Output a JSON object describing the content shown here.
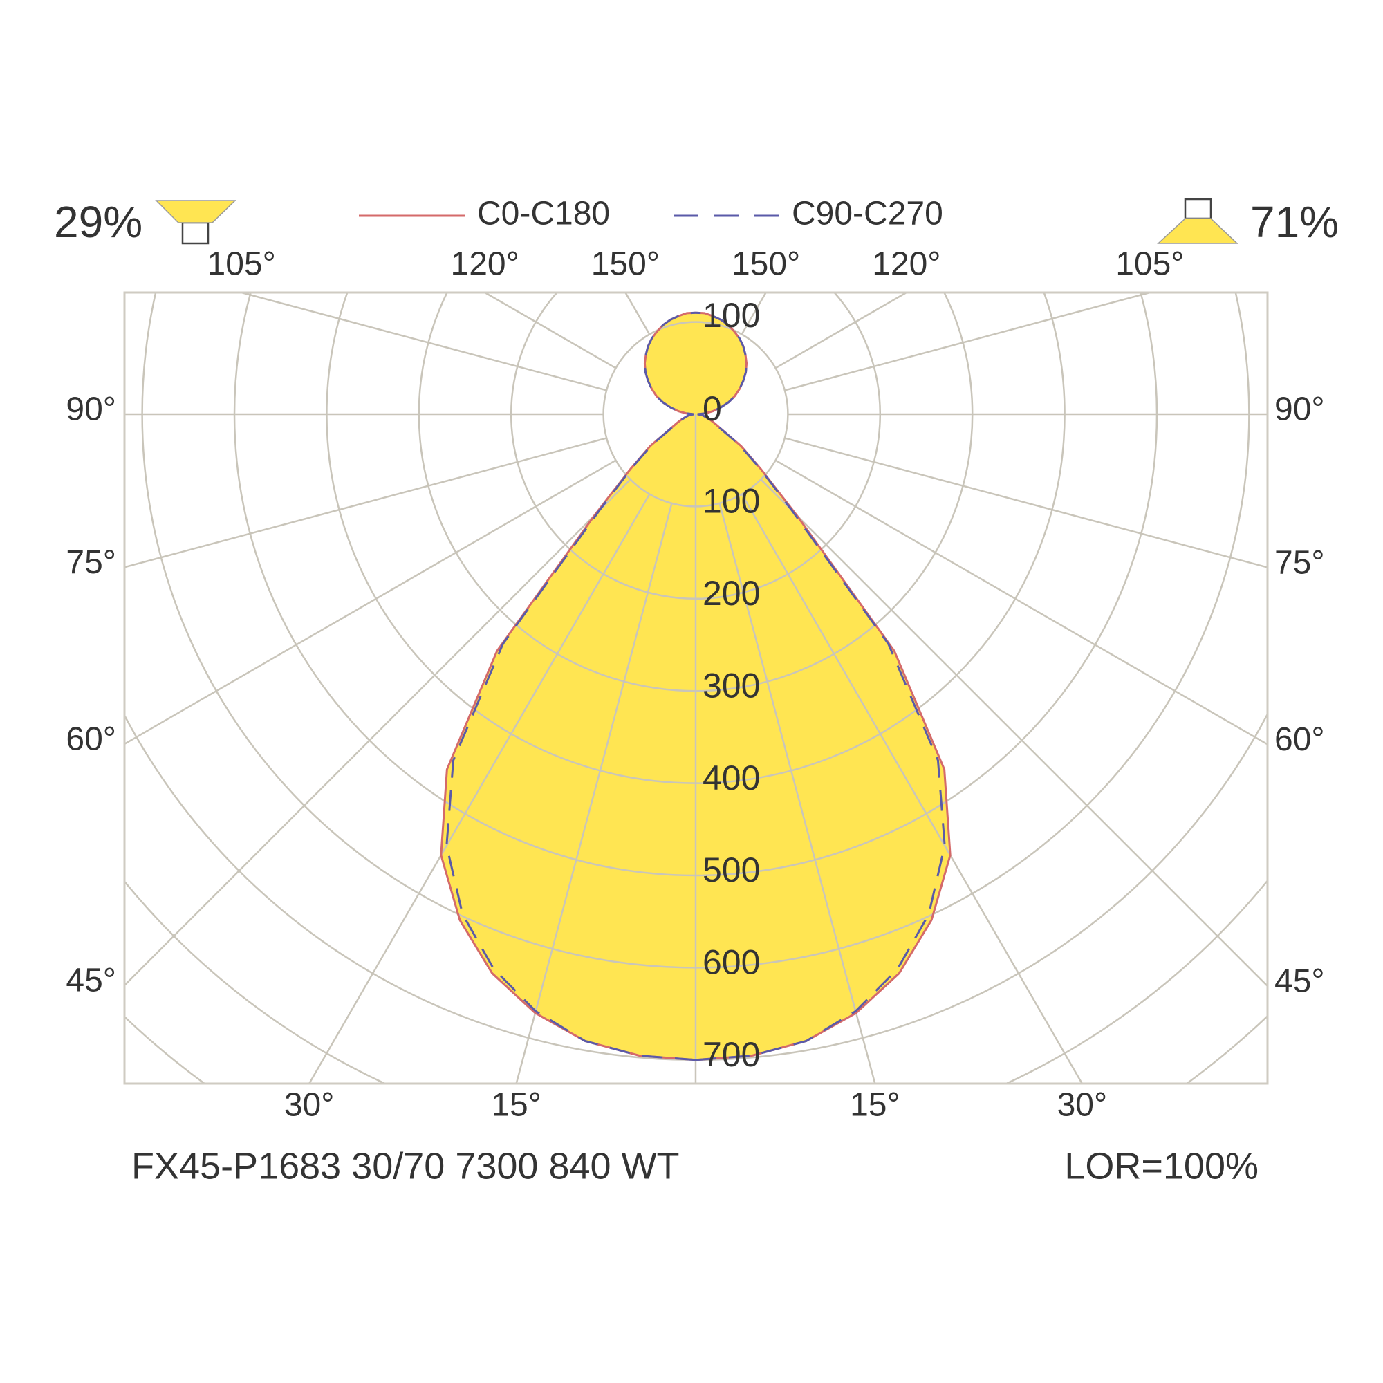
{
  "chart_data": {
    "type": "polar",
    "angles": [
      0,
      5,
      10,
      15,
      20,
      25,
      30,
      35,
      40,
      45,
      50,
      55,
      60,
      65,
      70,
      75,
      80,
      85,
      90,
      95,
      100,
      105,
      110,
      115,
      120,
      125,
      130,
      135,
      140,
      145,
      150,
      155,
      160,
      165,
      170,
      175,
      180
    ],
    "series": [
      {
        "name": "C0-C180",
        "color": "#d46a6a",
        "dash": false,
        "values": [
          700,
          698,
          690,
          672,
          645,
          605,
          552,
          470,
          335,
          155,
          92,
          60,
          32,
          22,
          16,
          11,
          8,
          5,
          2,
          10,
          19,
          28,
          38,
          47,
          55,
          63,
          71,
          78,
          84,
          90,
          95,
          99,
          103,
          106,
          108,
          110,
          110
        ]
      },
      {
        "name": "C90-C270",
        "color": "#5a5aa8",
        "dash": true,
        "values": [
          700,
          698,
          690,
          670,
          640,
          598,
          540,
          458,
          325,
          148,
          90,
          58,
          31,
          21,
          15,
          11,
          8,
          5,
          2,
          10,
          19,
          28,
          38,
          47,
          55,
          63,
          71,
          78,
          84,
          90,
          95,
          99,
          103,
          106,
          108,
          110,
          110
        ]
      }
    ],
    "fill_color": "#ffe552",
    "grid": true,
    "rticks": [
      0,
      100,
      200,
      300,
      400,
      500,
      600,
      700
    ],
    "rticks_upper": [
      100
    ],
    "angle_ticks": [
      {
        "value": -105,
        "label": "105°"
      },
      {
        "value": -120,
        "label": "120°"
      },
      {
        "value": -150,
        "label": "150°"
      },
      {
        "value": 150,
        "label": "150°"
      },
      {
        "value": 120,
        "label": "120°"
      },
      {
        "value": 105,
        "label": "105°"
      },
      {
        "value": -90,
        "label": "90°"
      },
      {
        "value": -75,
        "label": "75°"
      },
      {
        "value": -60,
        "label": "60°"
      },
      {
        "value": -45,
        "label": "45°"
      },
      {
        "value": 90,
        "label": "90°"
      },
      {
        "value": 75,
        "label": "75°"
      },
      {
        "value": 60,
        "label": "60°"
      },
      {
        "value": 45,
        "label": "45°"
      },
      {
        "value": -30,
        "label": "30°"
      },
      {
        "value": -15,
        "label": "15°"
      },
      {
        "value": 15,
        "label": "15°"
      },
      {
        "value": 30,
        "label": "30°"
      }
    ],
    "light_split": [
      {
        "value": 29,
        "label": "29%"
      },
      {
        "value": 71,
        "label": "71%"
      }
    ],
    "footer_left": "FX45-P1683 30/70 7300 840 WT",
    "footer_right": "LOR=100%"
  }
}
